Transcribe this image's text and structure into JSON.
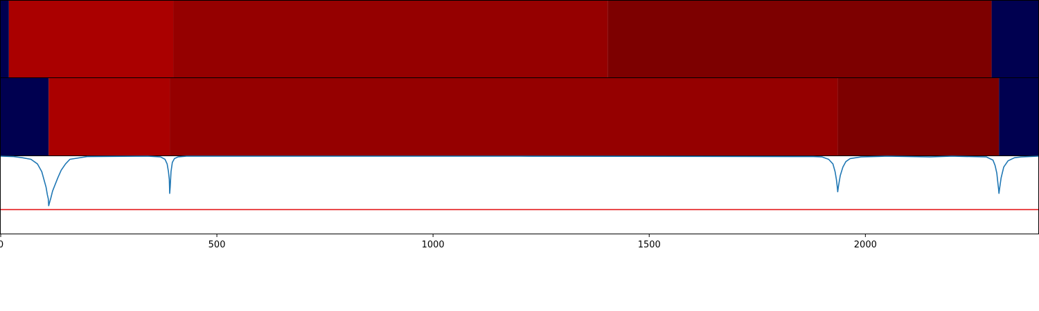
{
  "colors": {
    "background": "#ffffff",
    "frame": "#000000",
    "curve": "#1f77b4",
    "threshold": "#e31a1c",
    "navy": "#000050",
    "red_bright": "#aa0000",
    "red_mid": "#950000",
    "red_dark": "#7d0000"
  },
  "chart_data": [
    {
      "type": "heatmap",
      "name_hint": "top-band",
      "xlim": [
        0,
        2400
      ],
      "segments": [
        {
          "from": 0,
          "to": 19,
          "color": "#000050"
        },
        {
          "from": 19,
          "to": 399,
          "color": "#aa0000"
        },
        {
          "from": 399,
          "to": 1404,
          "color": "#950000"
        },
        {
          "from": 1404,
          "to": 2292,
          "color": "#7d0000"
        },
        {
          "from": 2292,
          "to": 2400,
          "color": "#000050"
        }
      ]
    },
    {
      "type": "heatmap",
      "name_hint": "middle-band",
      "xlim": [
        0,
        2400
      ],
      "segments": [
        {
          "from": 0,
          "to": 111,
          "color": "#000050"
        },
        {
          "from": 111,
          "to": 391,
          "color": "#aa0000"
        },
        {
          "from": 391,
          "to": 1936,
          "color": "#950000"
        },
        {
          "from": 1936,
          "to": 2309,
          "color": "#7d0000"
        },
        {
          "from": 2309,
          "to": 2400,
          "color": "#000050"
        }
      ]
    },
    {
      "type": "line",
      "xlim": [
        0,
        2400
      ],
      "ylim": [
        0,
        1
      ],
      "threshold": 0.31,
      "x": [
        0,
        30,
        50,
        70,
        85,
        95,
        100,
        105,
        108,
        110,
        111,
        113,
        116,
        120,
        125,
        132,
        140,
        150,
        160,
        200,
        340,
        370,
        380,
        385,
        388,
        390,
        391,
        392,
        394,
        397,
        402,
        410,
        430,
        700,
        1200,
        1880,
        1900,
        1915,
        1925,
        1930,
        1933,
        1935,
        1936,
        1938,
        1942,
        1948,
        1955,
        1965,
        1990,
        2050,
        2150,
        2200,
        2280,
        2295,
        2300,
        2304,
        2306,
        2308,
        2309,
        2311,
        2314,
        2320,
        2330,
        2345,
        2360,
        2400
      ],
      "y": [
        1.0,
        0.995,
        0.98,
        0.96,
        0.9,
        0.8,
        0.7,
        0.6,
        0.5,
        0.45,
        0.36,
        0.4,
        0.46,
        0.55,
        0.62,
        0.72,
        0.82,
        0.9,
        0.96,
        0.995,
        1.0,
        0.99,
        0.96,
        0.9,
        0.8,
        0.7,
        0.52,
        0.6,
        0.8,
        0.92,
        0.97,
        0.99,
        1.0,
        1.0,
        1.0,
        0.995,
        0.99,
        0.96,
        0.9,
        0.8,
        0.7,
        0.6,
        0.54,
        0.62,
        0.75,
        0.86,
        0.93,
        0.97,
        0.99,
        1.0,
        0.99,
        1.0,
        0.99,
        0.95,
        0.88,
        0.78,
        0.68,
        0.58,
        0.52,
        0.6,
        0.72,
        0.86,
        0.94,
        0.98,
        0.99,
        1.0
      ],
      "xticks": [
        0,
        500,
        1000,
        1500,
        2000
      ],
      "xtick_labels": [
        "0",
        "500",
        "1000",
        "1500",
        "2000"
      ]
    }
  ]
}
